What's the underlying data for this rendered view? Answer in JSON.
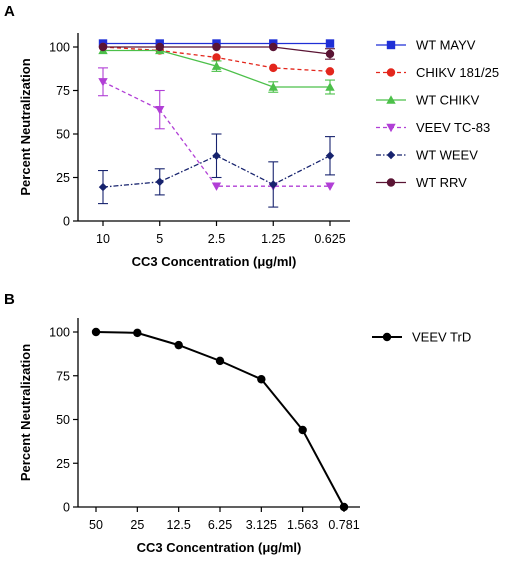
{
  "chart_data": [
    {
      "panel": "A",
      "type": "line",
      "categories": [
        "10",
        "5",
        "2.5",
        "1.25",
        "0.625"
      ],
      "xlabel": "CC3 Concentration (μg/ml)",
      "ylabel": "Percent Neutralization",
      "ylim": [
        0,
        100
      ],
      "yticks": [
        "0",
        "25",
        "50",
        "75",
        "100"
      ],
      "legend_position": "right",
      "grid": false,
      "series": [
        {
          "name": "WT MAYV",
          "values": [
            102,
            102,
            102,
            102,
            102
          ],
          "errors": [
            0,
            0,
            0,
            0,
            0
          ],
          "color": "#1f2fd6",
          "marker": "square",
          "dash": "solid"
        },
        {
          "name": "CHIKV 181/25",
          "values": [
            100,
            98,
            94,
            88,
            86
          ],
          "errors": [
            0,
            0,
            0,
            0,
            0
          ],
          "color": "#e3261c",
          "marker": "circle",
          "dash": "dashed"
        },
        {
          "name": "WT CHIKV",
          "values": [
            98,
            98,
            89,
            77,
            77
          ],
          "errors": [
            0,
            0,
            3,
            3,
            4
          ],
          "color": "#4cc04a",
          "marker": "triangle-up",
          "dash": "solid"
        },
        {
          "name": "VEEV TC-83",
          "values": [
            80,
            64,
            20,
            20,
            20
          ],
          "errors": [
            8,
            11,
            0,
            0,
            0
          ],
          "color": "#b13fd6",
          "marker": "triangle-down",
          "dash": "dashed"
        },
        {
          "name": "WT WEEV",
          "values": [
            19.5,
            22.5,
            37.5,
            21,
            37.5
          ],
          "errors": [
            9.5,
            7.5,
            12.5,
            13,
            11
          ],
          "color": "#17236e",
          "marker": "diamond",
          "dash": "dotdash"
        },
        {
          "name": "WT RRV",
          "values": [
            100,
            100,
            100,
            100,
            96
          ],
          "errors": [
            0,
            0,
            0,
            0,
            3
          ],
          "color": "#5a1434",
          "marker": "circle",
          "dash": "solid"
        }
      ]
    },
    {
      "panel": "B",
      "type": "line",
      "categories": [
        "50",
        "25",
        "12.5",
        "6.25",
        "3.125",
        "1.563",
        "0.781"
      ],
      "xlabel": "CC3 Concentration (μg/ml)",
      "ylabel": "Percent Neutralization",
      "ylim": [
        0,
        100
      ],
      "yticks": [
        "0",
        "25",
        "50",
        "75",
        "100"
      ],
      "legend_position": "top-right",
      "grid": false,
      "series": [
        {
          "name": "VEEV TrD",
          "values": [
            100,
            99.5,
            92.5,
            83.5,
            73,
            44,
            0
          ],
          "color": "#000000",
          "marker": "circle",
          "dash": "solid"
        }
      ]
    }
  ]
}
